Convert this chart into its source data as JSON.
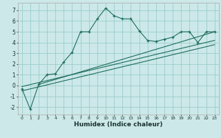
{
  "xlabel": "Humidex (Indice chaleur)",
  "bg_color": "#cce8e8",
  "grid_color": "#99cccc",
  "line_color": "#1a6b5a",
  "xlim": [
    -0.5,
    23.5
  ],
  "ylim": [
    -2.7,
    7.7
  ],
  "xticks": [
    0,
    1,
    2,
    3,
    4,
    5,
    6,
    7,
    8,
    9,
    10,
    11,
    12,
    13,
    14,
    15,
    16,
    17,
    18,
    19,
    20,
    21,
    22,
    23
  ],
  "yticks": [
    -2,
    -1,
    0,
    1,
    2,
    3,
    4,
    5,
    6,
    7
  ],
  "main_x": [
    0,
    1,
    2,
    3,
    4,
    5,
    6,
    7,
    8,
    9,
    10,
    11,
    12,
    13,
    14,
    15,
    16,
    17,
    18,
    19,
    20,
    21,
    22,
    23
  ],
  "main_y": [
    -0.3,
    -2.2,
    0.1,
    1.0,
    1.1,
    2.2,
    3.1,
    5.0,
    5.0,
    6.2,
    7.2,
    6.5,
    6.2,
    6.2,
    5.1,
    4.2,
    4.1,
    4.3,
    4.5,
    5.0,
    5.0,
    4.0,
    5.0,
    5.0
  ],
  "line1_x": [
    0,
    23
  ],
  "line1_y": [
    -0.1,
    4.2
  ],
  "line2_x": [
    0,
    23
  ],
  "line2_y": [
    -0.5,
    3.8
  ],
  "line3_x": [
    2,
    23
  ],
  "line3_y": [
    0.1,
    5.0
  ]
}
